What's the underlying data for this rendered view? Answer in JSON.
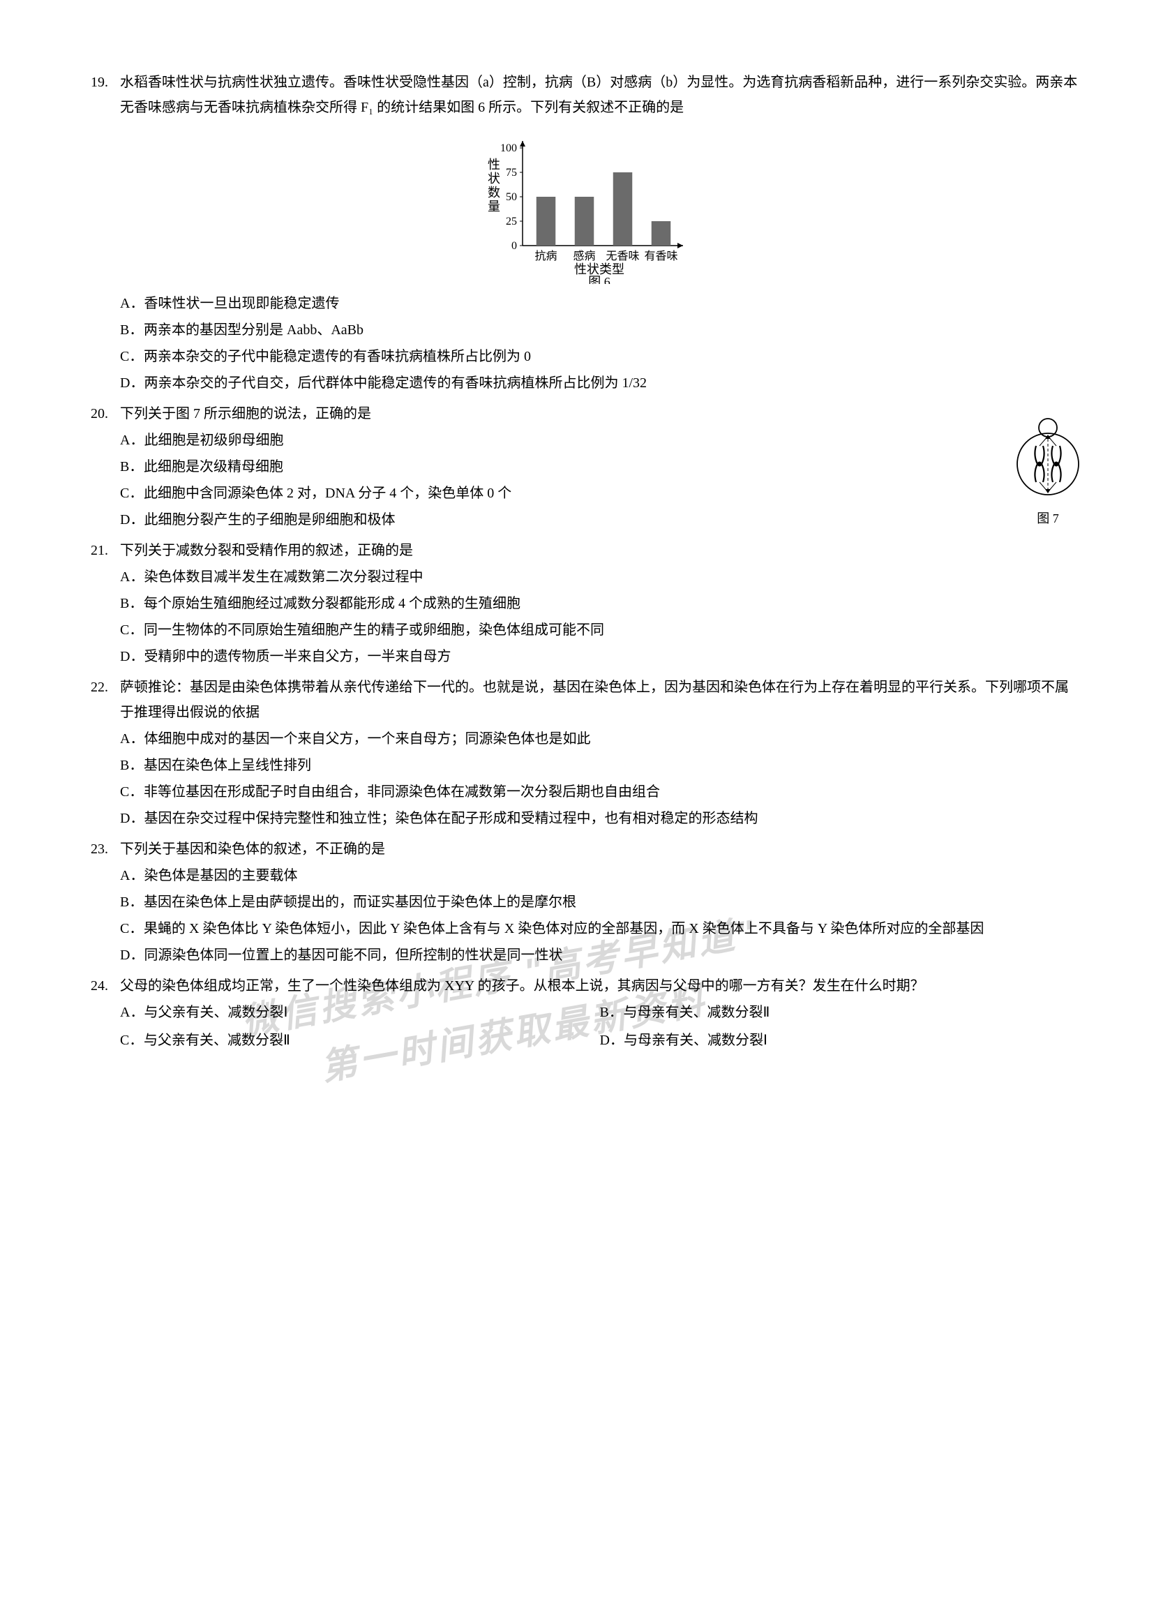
{
  "q19": {
    "num": "19.",
    "stem": "水稻香味性状与抗病性状独立遗传。香味性状受隐性基因（a）控制，抗病（B）对感病（b）为显性。为选育抗病香稻新品种，进行一系列杂交实验。两亲本无香味感病与无香味抗病植株杂交所得 F₁ 的统计结果如图 6 所示。下列有关叙述不正确的是",
    "chart": {
      "type": "bar",
      "ylabel_lines": [
        "性",
        "状",
        "数",
        "量"
      ],
      "ymax": 100,
      "yticks": [
        0,
        25,
        50,
        75,
        100
      ],
      "categories": [
        "抗病",
        "感病",
        "无香味",
        "有香味"
      ],
      "values": [
        50,
        50,
        75,
        25
      ],
      "xlabel": "性状类型",
      "caption": "图 6",
      "bar_color": "#6b6b6b",
      "axis_color": "#000000",
      "background": "#ffffff",
      "bar_width_ratio": 0.5,
      "label_fontsize": 18,
      "tick_fontsize": 16
    },
    "options": {
      "A": "香味性状一旦出现即能稳定遗传",
      "B": "两亲本的基因型分别是 Aabb、AaBb",
      "C": "两亲本杂交的子代中能稳定遗传的有香味抗病植株所占比例为 0",
      "D": "两亲本杂交的子代自交，后代群体中能稳定遗传的有香味抗病植株所占比例为 1/32"
    }
  },
  "q20": {
    "num": "20.",
    "stem": "下列关于图 7 所示细胞的说法，正确的是",
    "options": {
      "A": "此细胞是初级卵母细胞",
      "B": "此细胞是次级精母细胞",
      "C": "此细胞中含同源染色体 2 对，DNA 分子 4 个，染色单体 0 个",
      "D": "此细胞分裂产生的子细胞是卵细胞和极体"
    },
    "figure_caption": "图 7"
  },
  "q21": {
    "num": "21.",
    "stem": "下列关于减数分裂和受精作用的叙述，正确的是",
    "options": {
      "A": "染色体数目减半发生在减数第二次分裂过程中",
      "B": "每个原始生殖细胞经过减数分裂都能形成 4 个成熟的生殖细胞",
      "C": "同一生物体的不同原始生殖细胞产生的精子或卵细胞，染色体组成可能不同",
      "D": "受精卵中的遗传物质一半来自父方，一半来自母方"
    }
  },
  "q22": {
    "num": "22.",
    "stem": "萨顿推论：基因是由染色体携带着从亲代传递给下一代的。也就是说，基因在染色体上，因为基因和染色体在行为上存在着明显的平行关系。下列哪项不属于推理得出假说的依据",
    "options": {
      "A": "体细胞中成对的基因一个来自父方，一个来自母方；同源染色体也是如此",
      "B": "基因在染色体上呈线性排列",
      "C": "非等位基因在形成配子时自由组合，非同源染色体在减数第一次分裂后期也自由组合",
      "D": "基因在杂交过程中保持完整性和独立性；染色体在配子形成和受精过程中，也有相对稳定的形态结构"
    }
  },
  "q23": {
    "num": "23.",
    "stem": "下列关于基因和染色体的叙述，不正确的是",
    "options": {
      "A": "染色体是基因的主要载体",
      "B": "基因在染色体上是由萨顿提出的，而证实基因位于染色体上的是摩尔根",
      "C": "果蝇的 X 染色体比 Y 染色体短小，因此 Y 染色体上含有与 X 染色体对应的全部基因，而 X 染色体上不具备与 Y 染色体所对应的全部基因",
      "D": "同源染色体同一位置上的基因可能不同，但所控制的性状是同一性状"
    }
  },
  "q24": {
    "num": "24.",
    "stem": "父母的染色体组成均正常，生了一个性染色体组成为 XYY 的孩子。从根本上说，其病因与父母中的哪一方有关？发生在什么时期？",
    "options": {
      "A": "与父亲有关、减数分裂Ⅰ",
      "B": "与母亲有关、减数分裂Ⅱ",
      "C": "与父亲有关、减数分裂Ⅱ",
      "D": "与母亲有关、减数分裂Ⅰ"
    }
  },
  "watermark": {
    "line1": "微信搜索小程序 \"高考早知道\"",
    "line2": "第一时间获取最新资料"
  }
}
